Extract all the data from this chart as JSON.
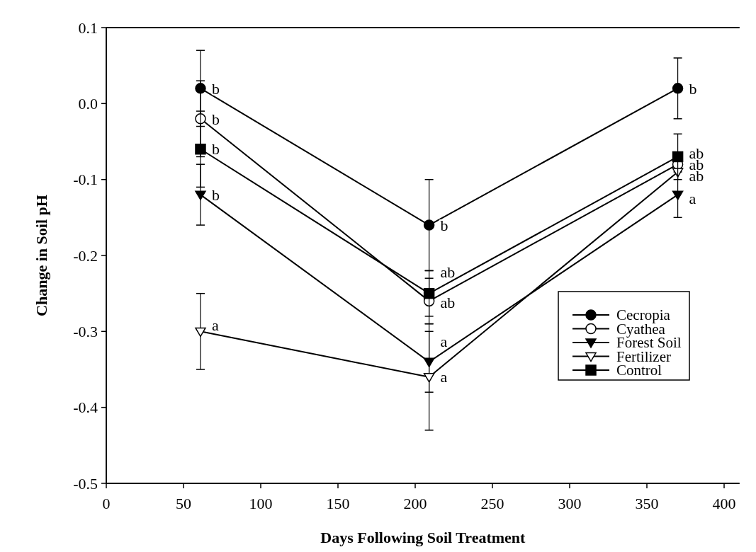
{
  "chart_data": {
    "type": "line",
    "xlabel": "Days Following Soil Treatment",
    "ylabel": "Change in Soil pH",
    "xlim": [
      0,
      410
    ],
    "xticks": [
      0,
      50,
      100,
      150,
      200,
      250,
      300,
      350,
      400
    ],
    "ylim": [
      -0.5,
      0.1
    ],
    "yticks": [
      {
        "value": 0.1,
        "label": "0.1"
      },
      {
        "value": 0,
        "label": "0.0"
      },
      {
        "value": -0.1,
        "label": "-0.1"
      },
      {
        "value": -0.2,
        "label": "-0.2"
      },
      {
        "value": -0.3,
        "label": "-0.3"
      },
      {
        "value": -0.4,
        "label": "-0.4"
      },
      {
        "value": -0.5,
        "label": "-0.5"
      }
    ],
    "x": [
      61,
      209,
      370
    ],
    "series": [
      {
        "name": "Cecropia",
        "color": "#000000",
        "marker": "circle",
        "values": [
          0.02,
          -0.16,
          0.02
        ],
        "errors": [
          0.05,
          0.06,
          0.04
        ]
      },
      {
        "name": "Cyathea",
        "color": "#000000",
        "marker": "circle-open",
        "values": [
          -0.02,
          -0.26,
          -0.08
        ],
        "errors": [
          0.05,
          0.03,
          null
        ]
      },
      {
        "name": "Forest Soil",
        "color": "#000000",
        "marker": "triangle-down",
        "values": [
          -0.12,
          -0.34,
          -0.12
        ],
        "errors": [
          0.04,
          0.04,
          0.03
        ]
      },
      {
        "name": "Fertilizer",
        "color": "#000000",
        "marker": "triangle-down-open",
        "values": [
          -0.3,
          -0.36,
          -0.09
        ],
        "errors": [
          0.05,
          0.07,
          null
        ]
      },
      {
        "name": "Control",
        "color": "#000000",
        "marker": "square",
        "values": [
          -0.06,
          -0.25,
          -0.07
        ],
        "errors": [
          0.05,
          0.03,
          0.03
        ]
      }
    ],
    "annotations": [
      {
        "text": "b",
        "x": 61,
        "y": 0.02
      },
      {
        "text": "b",
        "x": 61,
        "y": -0.02
      },
      {
        "text": "b",
        "x": 61,
        "y": -0.06
      },
      {
        "text": "b",
        "x": 61,
        "y": -0.12
      },
      {
        "text": "a",
        "x": 61,
        "y": -0.292
      },
      {
        "text": "b",
        "x": 209,
        "y": -0.16
      },
      {
        "text": "ab",
        "x": 209,
        "y": -0.222
      },
      {
        "text": "ab",
        "x": 209,
        "y": -0.262
      },
      {
        "text": "a",
        "x": 209,
        "y": -0.313
      },
      {
        "text": "a",
        "x": 209,
        "y": -0.36
      },
      {
        "text": "b",
        "x": 370,
        "y": 0.02
      },
      {
        "text": "ab",
        "x": 370,
        "y": -0.065
      },
      {
        "text": "ab",
        "x": 370,
        "y": -0.08
      },
      {
        "text": "ab",
        "x": 370,
        "y": -0.095
      },
      {
        "text": "a",
        "x": 370,
        "y": -0.125
      }
    ],
    "legend": "bottom right",
    "grid": false
  }
}
